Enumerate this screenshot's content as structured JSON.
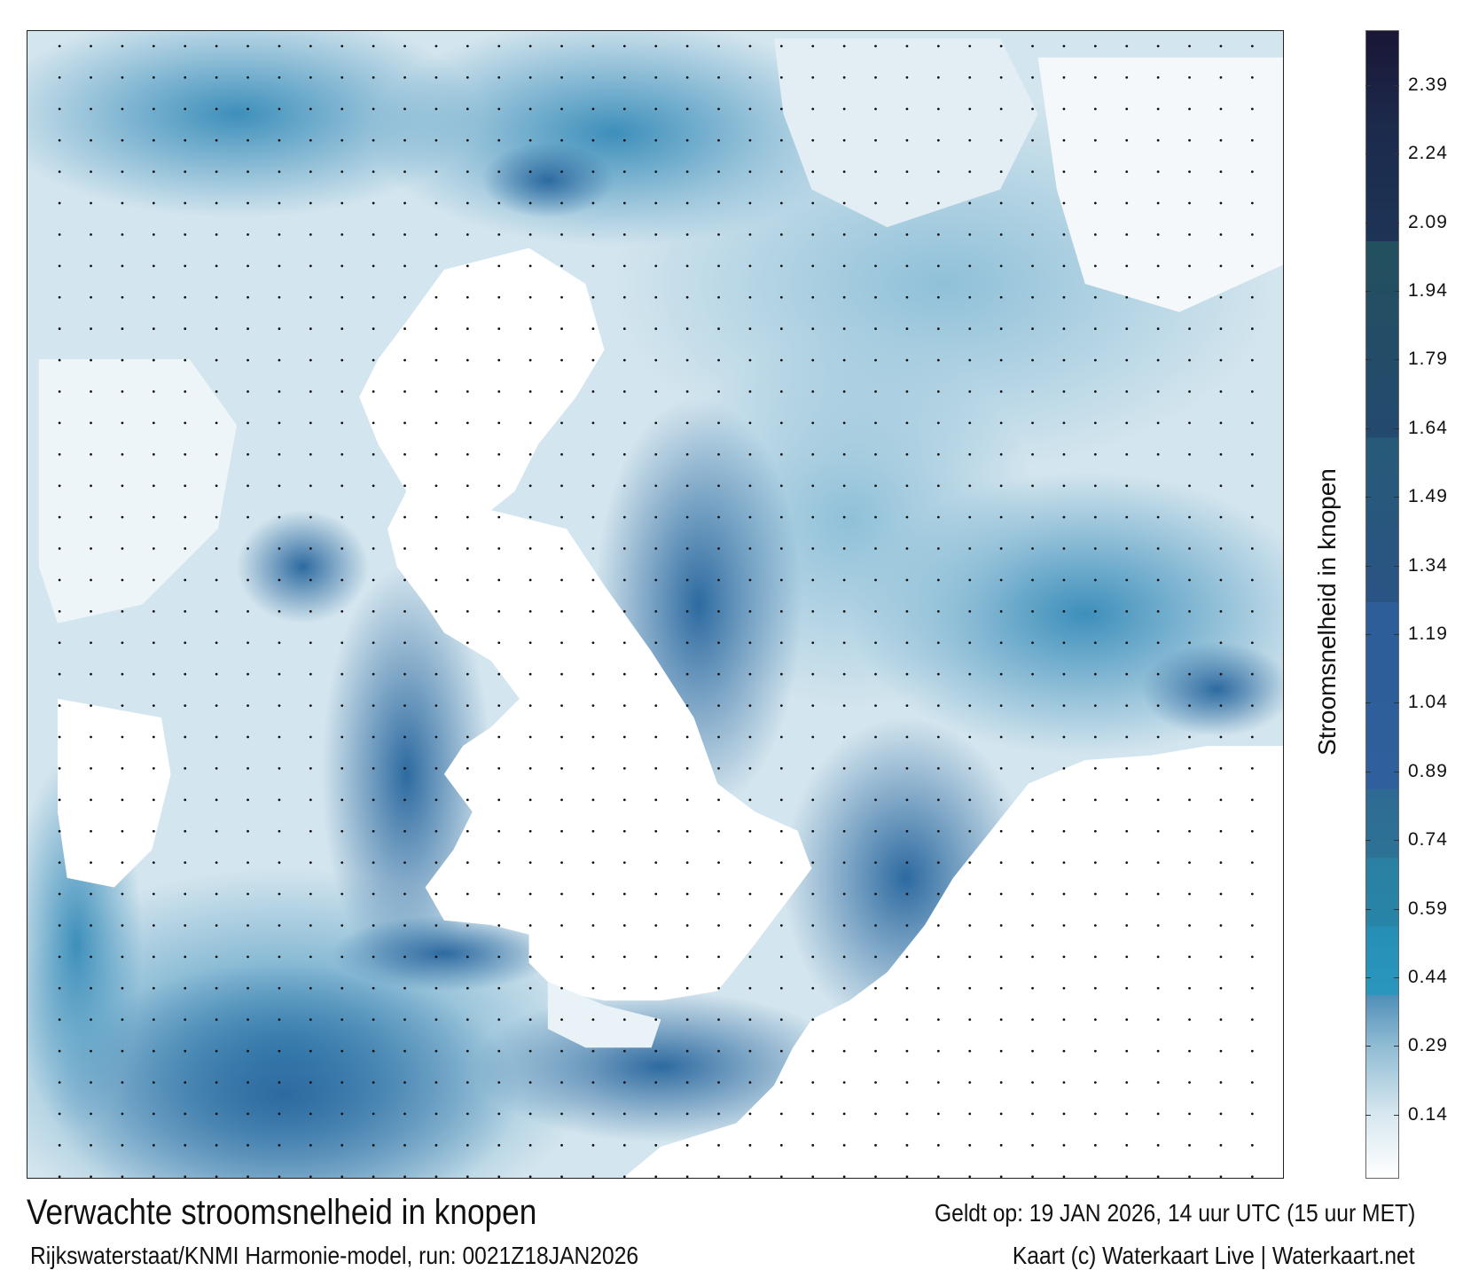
{
  "title": "Verwachte stroomsnelheid in knopen",
  "source": "Rijkswaterstaat/KNMI Harmonie-model, run: 0021Z18JAN2026",
  "valid_time": "Geldt op: 19 JAN 2026, 14 uur UTC (15 uur MET)",
  "credit": "Kaart (c) Waterkaart Live | Waterkaart.net",
  "colorbar": {
    "label": "Stroomsnelheid in knopen",
    "range": [
      0,
      2.51
    ],
    "ticks": [
      "0.14",
      "0.29",
      "0.44",
      "0.59",
      "0.74",
      "0.89",
      "1.04",
      "1.19",
      "1.34",
      "1.49",
      "1.64",
      "1.79",
      "1.94",
      "2.09",
      "2.24",
      "2.39"
    ],
    "stops": [
      {
        "v": 0.0,
        "c": "#ffffff"
      },
      {
        "v": 0.14,
        "c": "#d7e7ef"
      },
      {
        "v": 0.29,
        "c": "#8fbbd3"
      },
      {
        "v": 0.4,
        "c": "#4f8fb8"
      },
      {
        "v": 0.4,
        "c": "#2a97bf"
      },
      {
        "v": 0.55,
        "c": "#268eb4"
      },
      {
        "v": 0.55,
        "c": "#2785a8"
      },
      {
        "v": 0.7,
        "c": "#2a80a2"
      },
      {
        "v": 0.7,
        "c": "#2d7396"
      },
      {
        "v": 0.85,
        "c": "#2e6a93"
      },
      {
        "v": 0.85,
        "c": "#2f5f9c"
      },
      {
        "v": 1.26,
        "c": "#2d5e99"
      },
      {
        "v": 1.26,
        "c": "#2a5484"
      },
      {
        "v": 1.62,
        "c": "#275a78"
      },
      {
        "v": 1.62,
        "c": "#234a6f"
      },
      {
        "v": 2.05,
        "c": "#23505e"
      },
      {
        "v": 2.05,
        "c": "#1d3456"
      },
      {
        "v": 2.3,
        "c": "#1c2a4c"
      },
      {
        "v": 2.51,
        "c": "#1a1636"
      }
    ]
  }
}
